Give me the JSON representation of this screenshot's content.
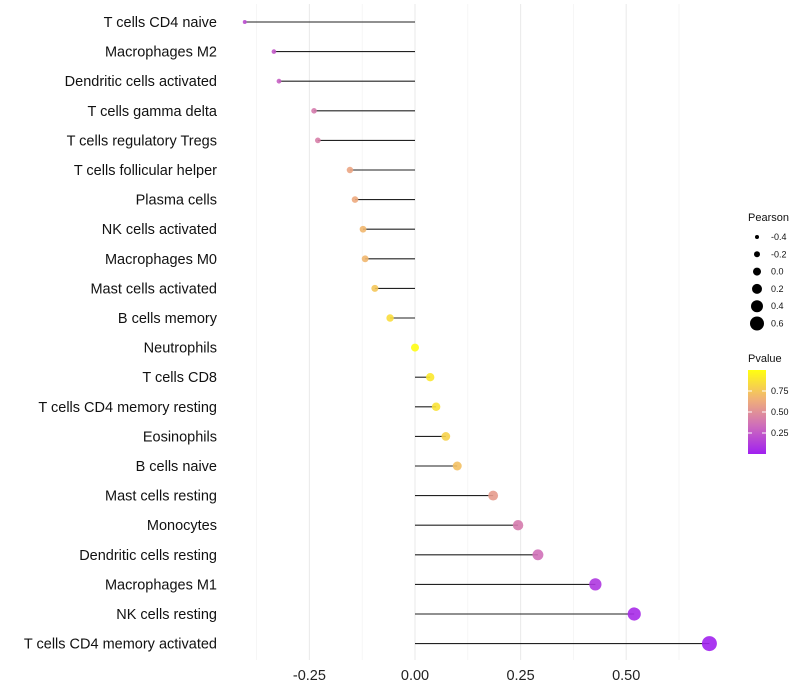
{
  "chart_data": {
    "type": "lollipop",
    "title": "",
    "xlabel": "",
    "ylabel": "",
    "xlim": [
      -0.44,
      0.73
    ],
    "x_ticks": [
      -0.25,
      0.0,
      0.25,
      0.5
    ],
    "x_tick_labels": [
      "-0.25",
      "0.00",
      "0.25",
      "0.50"
    ],
    "grid": true,
    "categories": [
      "T cells CD4 naive",
      "Macrophages M2",
      "Dendritic cells activated",
      "T cells gamma delta",
      "T cells regulatory  Tregs",
      "T cells follicular helper",
      "Plasma cells",
      "NK cells activated",
      "Macrophages M0",
      "Mast cells activated",
      "B cells memory",
      "Neutrophils",
      "T cells CD8",
      "T cells CD4 memory resting",
      "Eosinophils",
      "B cells naive",
      "Mast cells resting",
      "Monocytes",
      "Dendritic cells resting",
      "Macrophages M1",
      "NK cells resting",
      "T cells CD4 memory activated"
    ],
    "pearson": [
      -0.403,
      -0.334,
      -0.322,
      -0.239,
      -0.23,
      -0.154,
      -0.142,
      -0.123,
      -0.118,
      -0.095,
      -0.059,
      0.0,
      0.036,
      0.05,
      0.073,
      0.1,
      0.185,
      0.244,
      0.291,
      0.427,
      0.519,
      0.697
    ],
    "pvalue": [
      0.2,
      0.25,
      0.28,
      0.4,
      0.42,
      0.6,
      0.62,
      0.68,
      0.68,
      0.75,
      0.85,
      0.99,
      0.9,
      0.87,
      0.8,
      0.72,
      0.55,
      0.4,
      0.35,
      0.1,
      0.05,
      0.01
    ],
    "size_legend": {
      "title": "Pearson",
      "values": [
        -0.4,
        -0.2,
        0.0,
        0.2,
        0.4,
        0.6
      ],
      "labels": [
        "-0.4",
        "-0.2",
        "0.0",
        "0.2",
        "0.4",
        "0.6"
      ]
    },
    "color_legend": {
      "title": "Pvalue",
      "values": [
        0.75,
        0.5,
        0.25
      ],
      "labels": [
        "0.75",
        "0.50",
        "0.25"
      ],
      "low_color": "#A020F0",
      "high_color": "#FFFF00"
    },
    "legend_position": "right"
  }
}
